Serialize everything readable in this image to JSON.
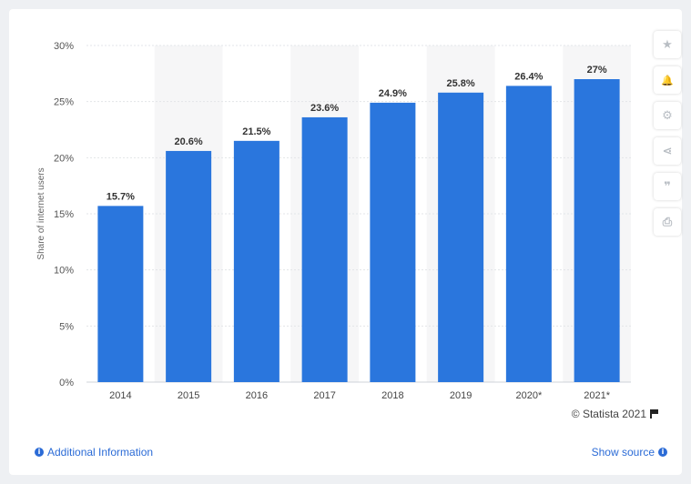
{
  "chart_data": {
    "type": "bar",
    "categories": [
      "2014",
      "2015",
      "2016",
      "2017",
      "2018",
      "2019",
      "2020*",
      "2021*"
    ],
    "values": [
      15.7,
      20.6,
      21.5,
      23.6,
      24.9,
      25.8,
      26.4,
      27
    ],
    "value_labels": [
      "15.7%",
      "20.6%",
      "21.5%",
      "23.6%",
      "24.9%",
      "25.8%",
      "26.4%",
      "27%"
    ],
    "ylabel": "Share of internet users",
    "xlabel": "",
    "ylim": [
      0,
      30
    ],
    "yticks": [
      0,
      5,
      10,
      15,
      20,
      25,
      30
    ],
    "ytick_labels": [
      "0%",
      "5%",
      "10%",
      "15%",
      "20%",
      "25%",
      "30%"
    ],
    "bar_color": "#2a76dd",
    "alt_band_color": "#f6f6f7",
    "grid": true
  },
  "sidebar": {
    "buttons": [
      {
        "name": "star-icon",
        "glyph": "★"
      },
      {
        "name": "bell-icon",
        "glyph": "🔔"
      },
      {
        "name": "gear-icon",
        "glyph": "⚙"
      },
      {
        "name": "share-icon",
        "glyph": "⋖"
      },
      {
        "name": "quote-icon",
        "glyph": "❞"
      },
      {
        "name": "print-icon",
        "glyph": "⎙"
      }
    ]
  },
  "footer": {
    "credit": "© Statista 2021",
    "additional_info": "Additional Information",
    "show_source": "Show source"
  }
}
